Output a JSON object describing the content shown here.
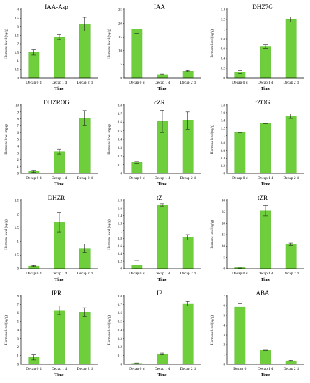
{
  "colors": {
    "bar": "#6fce3c",
    "bar_edge": "#5ab82c",
    "axis": "#000000"
  },
  "chart_data": [
    {
      "type": "bar",
      "title": "IAA-Asp",
      "xlabel": "Time",
      "ylabel": "Hormone level (ng/g)",
      "categories": [
        "Decap 0 d",
        "Decap 1 d",
        "Decap 2 d"
      ],
      "values": [
        1.5,
        2.4,
        3.15
      ],
      "errors": [
        0.15,
        0.15,
        0.4
      ],
      "ylim": [
        0,
        4
      ],
      "yticks": [
        "0",
        "0.5",
        "1",
        "1.5",
        "2",
        "2.5",
        "3",
        "3.5",
        "4"
      ]
    },
    {
      "type": "bar",
      "title": "IAA",
      "xlabel": "Time",
      "ylabel": "Hormone level (ng/g)",
      "categories": [
        "Decap 0 d",
        "Decap 1 d",
        "Decap 2 d"
      ],
      "values": [
        18,
        1.3,
        2.5
      ],
      "errors": [
        1.8,
        0.2,
        0.2
      ],
      "ylim": [
        0,
        25
      ],
      "yticks": [
        "0",
        "5",
        "10",
        "15",
        "20",
        "25"
      ]
    },
    {
      "type": "bar",
      "title": "DHZ7G",
      "xlabel": "Time",
      "ylabel": "Hormone level(ng/g)",
      "categories": [
        "Decap 0 d",
        "Decap 1 d",
        "Decap 2 d"
      ],
      "values": [
        0.12,
        0.65,
        1.2
      ],
      "errors": [
        0.03,
        0.04,
        0.05
      ],
      "ylim": [
        0,
        1.4
      ],
      "yticks": [
        "0",
        "0.2",
        "0.4",
        "0.6",
        "0.8",
        "1",
        "1.2",
        "1.4"
      ]
    },
    {
      "type": "bar",
      "title": "DHZROG",
      "xlabel": "Time",
      "ylabel": "Hormone level (ng/g)",
      "categories": [
        "Decap 0 d",
        "Decap 1 d",
        "Decap 2 d"
      ],
      "values": [
        0.3,
        3.2,
        8.1
      ],
      "errors": [
        0.15,
        0.35,
        1.1
      ],
      "ylim": [
        0,
        10
      ],
      "yticks": [
        "0",
        "1",
        "2",
        "3",
        "4",
        "5",
        "6",
        "7",
        "8",
        "9",
        "10"
      ]
    },
    {
      "type": "bar",
      "title": "cZR",
      "xlabel": "Time",
      "ylabel": "Hormone level (ng/g)",
      "categories": [
        "Decap 0 d",
        "Decap 1 d",
        "Decap 2 d"
      ],
      "values": [
        0.13,
        0.61,
        0.62
      ],
      "errors": [
        0.01,
        0.13,
        0.1
      ],
      "ylim": [
        0,
        0.8
      ],
      "yticks": [
        "0",
        "0.1",
        "0.2",
        "0.3",
        "0.4",
        "0.5",
        "0.6",
        "0.7",
        "0.8"
      ]
    },
    {
      "type": "bar",
      "title": "tZOG",
      "xlabel": "Time",
      "ylabel": "Hormone level(ng/g)",
      "categories": [
        "Decap 0 d",
        "Decap 1 d",
        "Decap 2 d"
      ],
      "values": [
        1.08,
        1.32,
        1.51
      ],
      "errors": [
        0.01,
        0.01,
        0.06
      ],
      "ylim": [
        0,
        1.8
      ],
      "yticks": [
        "0",
        "0.2",
        "0.4",
        "0.6",
        "0.8",
        "1",
        "1.2",
        "1.4",
        "1.6",
        "1.8"
      ]
    },
    {
      "type": "bar",
      "title": "DHZR",
      "xlabel": "Time",
      "ylabel": "Hormone level (ng/g)",
      "categories": [
        "Decap 0 d",
        "Decap 1 d",
        "Decap 2 d"
      ],
      "values": [
        0.1,
        1.7,
        0.75
      ],
      "errors": [
        0.02,
        0.35,
        0.15
      ],
      "ylim": [
        0,
        2.5
      ],
      "yticks": [
        "0",
        "0.5",
        "1",
        "1.5",
        "2",
        "2.5"
      ]
    },
    {
      "type": "bar",
      "title": "tZ",
      "xlabel": "Time",
      "ylabel": "Hormone level (ng/g)",
      "categories": [
        "Decap 0 d",
        "Decap 1 d",
        "Decap 2 d"
      ],
      "values": [
        0.1,
        1.68,
        0.83
      ],
      "errors": [
        0.12,
        0.03,
        0.07
      ],
      "ylim": [
        0,
        1.8
      ],
      "yticks": [
        "0",
        "0.2",
        "0.4",
        "0.6",
        "0.8",
        "1",
        "1.2",
        "1.4",
        "1.6",
        "1.8"
      ]
    },
    {
      "type": "bar",
      "title": "tZR",
      "xlabel": "Time",
      "ylabel": "Hormone level(ng/g)",
      "categories": [
        "Decap 0 d",
        "Decap 1 d",
        "Decap 2 d"
      ],
      "values": [
        0.5,
        25.5,
        10.8
      ],
      "errors": [
        0.2,
        2.2,
        0.5
      ],
      "ylim": [
        0,
        30
      ],
      "yticks": [
        "0",
        "5",
        "10",
        "15",
        "20",
        "25",
        "30"
      ]
    },
    {
      "type": "bar",
      "title": "IPR",
      "xlabel": "Time",
      "ylabel": "Hormone level(ng/g)",
      "categories": [
        "Decap 0 d",
        "Decap 1 d",
        "Decap 2 d"
      ],
      "values": [
        0.8,
        6.3,
        6.1
      ],
      "errors": [
        0.3,
        0.5,
        0.5
      ],
      "ylim": [
        0,
        8
      ],
      "yticks": [
        "0",
        "1",
        "2",
        "3",
        "4",
        "5",
        "6",
        "7",
        "8"
      ]
    },
    {
      "type": "bar",
      "title": "IP",
      "xlabel": "Time",
      "ylabel": "Hormone level(ng/g)",
      "categories": [
        "Decap 0 d",
        "Decap 1 d",
        "Decap 2 d"
      ],
      "values": [
        0.01,
        0.12,
        0.71
      ],
      "errors": [
        0.005,
        0.01,
        0.03
      ],
      "ylim": [
        0,
        0.8
      ],
      "yticks": [
        "0",
        "0.1",
        "0.2",
        "0.3",
        "0.4",
        "0.5",
        "0.6",
        "0.7",
        "0.8"
      ]
    },
    {
      "type": "bar",
      "title": "ABA",
      "xlabel": "Time",
      "ylabel": "Hormone level(ng/g)",
      "categories": [
        "Decap 0",
        "Decap 1 d",
        "Decap 2 d"
      ],
      "values": [
        5.85,
        1.45,
        0.35
      ],
      "errors": [
        0.4,
        0.05,
        0.05
      ],
      "ylim": [
        0,
        7
      ],
      "yticks": [
        "0",
        "1",
        "2",
        "3",
        "4",
        "5",
        "6",
        "7"
      ]
    }
  ]
}
